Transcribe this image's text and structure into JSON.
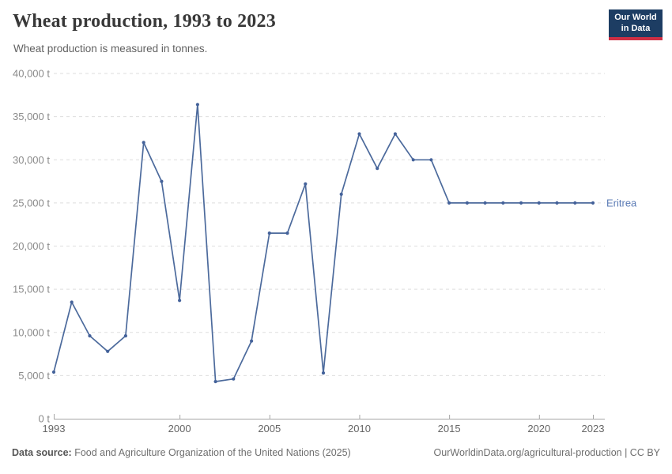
{
  "header": {
    "title": "Wheat production, 1993 to 2023",
    "subtitle": "Wheat production is measured in tonnes.",
    "logo": {
      "line1": "Our World",
      "line2": "in Data"
    }
  },
  "chart_data": {
    "type": "line",
    "title": "Wheat production, 1993 to 2023",
    "unit_suffix": " t",
    "xlim": [
      1993,
      2023
    ],
    "ylim": [
      0,
      40000
    ],
    "x_ticks": [
      1993,
      2000,
      2005,
      2010,
      2015,
      2020,
      2023
    ],
    "y_ticks": [
      0,
      5000,
      10000,
      15000,
      20000,
      25000,
      30000,
      35000,
      40000
    ],
    "grid": true,
    "legend_position": "end-of-line-label",
    "series": [
      {
        "name": "Eritrea",
        "x": [
          1993,
          1994,
          1995,
          1996,
          1997,
          1998,
          1999,
          2000,
          2001,
          2002,
          2003,
          2004,
          2005,
          2006,
          2007,
          2008,
          2009,
          2010,
          2011,
          2012,
          2013,
          2014,
          2015,
          2016,
          2017,
          2018,
          2019,
          2020,
          2021,
          2022,
          2023
        ],
        "values": [
          5400,
          13500,
          9600,
          7800,
          9600,
          32000,
          27500,
          13700,
          36400,
          4300,
          4600,
          9000,
          21500,
          21500,
          27200,
          5300,
          26000,
          33000,
          29000,
          33000,
          30000,
          30000,
          25000,
          25000,
          25000,
          25000,
          25000,
          25000,
          25000,
          25000,
          25000
        ]
      }
    ]
  },
  "colors": {
    "line": "#4C6A9C",
    "point": "#44629a",
    "entity_label": "#5b7bb5",
    "grid": "#dedede",
    "axis": "#a5a5a5",
    "y_tick_label": "#8a8a8a",
    "x_tick_label": "#666666"
  },
  "footer": {
    "source_label": "Data source:",
    "source_text": " Food and Agriculture Organization of the United Nations (2025)",
    "credit": "OurWorldinData.org/agricultural-production | CC BY"
  }
}
